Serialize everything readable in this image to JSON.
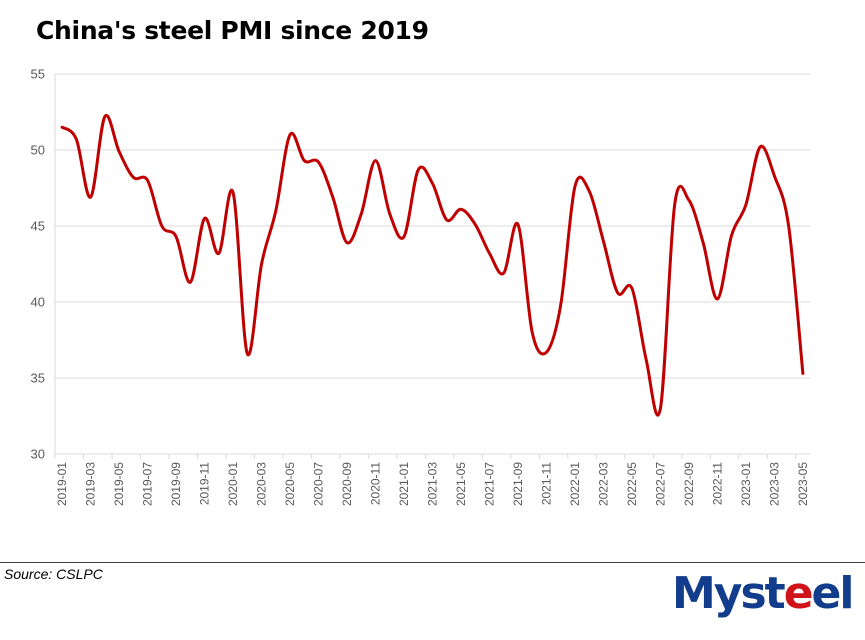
{
  "header": {
    "title": "China's steel PMI since 2019"
  },
  "footer": {
    "source": "Source: CSLPC",
    "logo": {
      "part1": "Myst",
      "part2": "e",
      "part3": "el",
      "brand_color": "#123c8c",
      "accent_color": "#d0121b"
    }
  },
  "chart_data": {
    "type": "line",
    "title": "China's steel PMI since 2019",
    "xlabel": "",
    "ylabel": "",
    "ylim": [
      30,
      55
    ],
    "yticks": [
      30,
      35,
      40,
      45,
      50,
      55
    ],
    "grid": true,
    "legend": "none",
    "line_color": "#c00000",
    "x": [
      "2019-01",
      "2019-02",
      "2019-03",
      "2019-04",
      "2019-05",
      "2019-06",
      "2019-07",
      "2019-08",
      "2019-09",
      "2019-10",
      "2019-11",
      "2019-12",
      "2020-01",
      "2020-02",
      "2020-03",
      "2020-04",
      "2020-05",
      "2020-06",
      "2020-07",
      "2020-08",
      "2020-09",
      "2020-10",
      "2020-11",
      "2020-12",
      "2021-01",
      "2021-02",
      "2021-03",
      "2021-04",
      "2021-05",
      "2021-06",
      "2021-07",
      "2021-08",
      "2021-09",
      "2021-10",
      "2021-11",
      "2021-12",
      "2022-01",
      "2022-02",
      "2022-03",
      "2022-04",
      "2022-05",
      "2022-06",
      "2022-07",
      "2022-08",
      "2022-09",
      "2022-10",
      "2022-11",
      "2022-12",
      "2023-01",
      "2023-02",
      "2023-03",
      "2023-04",
      "2023-05"
    ],
    "xtick_labels": [
      "2019-01",
      "2019-03",
      "2019-05",
      "2019-07",
      "2019-09",
      "2019-11",
      "2020-01",
      "2020-03",
      "2020-05",
      "2020-07",
      "2020-09",
      "2020-11",
      "2021-01",
      "2021-03",
      "2021-05",
      "2021-07",
      "2021-09",
      "2021-11",
      "2022-01",
      "2022-03",
      "2022-05",
      "2022-07",
      "2022-09",
      "2022-11",
      "2023-01",
      "2023-03",
      "2023-05"
    ],
    "series": [
      {
        "name": "Steel PMI",
        "values": [
          51.5,
          50.7,
          46.9,
          52.2,
          49.9,
          48.2,
          48.0,
          45.0,
          44.3,
          41.3,
          45.5,
          43.2,
          47.2,
          36.6,
          42.5,
          46.0,
          51.0,
          49.3,
          49.2,
          46.9,
          43.9,
          45.8,
          49.3,
          45.8,
          44.3,
          48.7,
          47.8,
          45.4,
          46.1,
          45.1,
          43.2,
          41.9,
          45.1,
          38.0,
          36.7,
          39.8,
          47.6,
          47.3,
          44.0,
          40.6,
          40.9,
          36.2,
          33.0,
          46.4,
          46.7,
          43.9,
          40.2,
          44.4,
          46.4,
          50.2,
          48.3,
          45.0,
          35.3
        ]
      }
    ]
  }
}
